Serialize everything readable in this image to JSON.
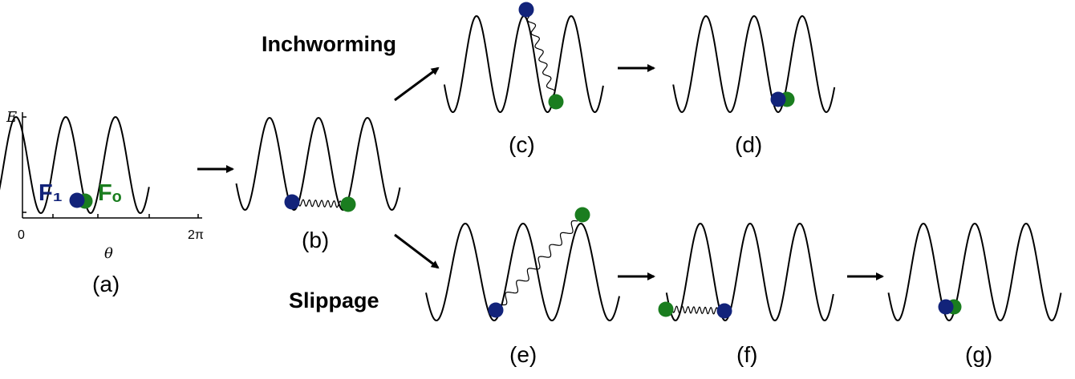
{
  "colors": {
    "f1": "#12237a",
    "fo": "#1a7d1f",
    "curve": "#000000",
    "background": "#ffffff"
  },
  "axis": {
    "y_label": "E",
    "x_label": "θ",
    "x_min": "0",
    "x_max": "2π"
  },
  "particles": {
    "f1_label": "F₁",
    "fo_label": "Fₒ"
  },
  "headings": {
    "top": "Inchworming",
    "bottom": "Slippage"
  },
  "panels": {
    "a": "(a)",
    "b": "(b)",
    "c": "(c)",
    "d": "(d)",
    "e": "(e)",
    "f": "(f)",
    "g": "(g)"
  }
}
